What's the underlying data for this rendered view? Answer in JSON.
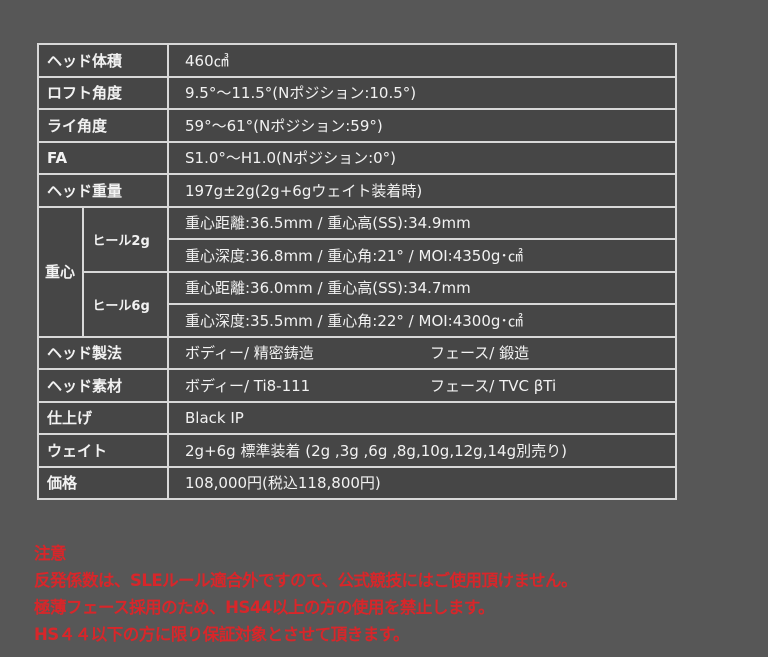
{
  "rows": [
    {
      "label": "ヘッド体積",
      "value": "460㎤"
    },
    {
      "label": "ロフト角度",
      "value": "9.5°〜11.5°(Nポジション:10.5°)"
    },
    {
      "label": "ライ角度",
      "value": "59°〜61°(Nポジション:59°)"
    },
    {
      "label": "FA",
      "value": "S1.0°〜H1.0(Nポジション:0°)"
    },
    {
      "label": "ヘッド重量",
      "value": "197g±2g(2g+6gウェイト装着時)"
    }
  ],
  "cg": {
    "label": "重心",
    "groups": [
      {
        "label": "ヒール2g",
        "lines": [
          "重心距離:36.5mm / 重心高(SS):34.9mm",
          "重心深度:36.8mm / 重心角:21° / MOI:4350g･㎠"
        ]
      },
      {
        "label": "ヒール6g",
        "lines": [
          "重心距離:36.0mm / 重心高(SS):34.7mm",
          "重心深度:35.5mm / 重心角:22° / MOI:4300g･㎠"
        ]
      }
    ]
  },
  "rows2": [
    {
      "label": "ヘッド製法",
      "value": "ボディー/ 精密鋳造",
      "value2": "フェース/ 鍛造"
    },
    {
      "label": "ヘッド素材",
      "value": "ボディー/ Ti8-111",
      "value2": "フェース/ TVC βTi"
    },
    {
      "label": "仕上げ",
      "value": "Black IP"
    },
    {
      "label": "ウェイト",
      "value": "2g+6g 標準装着 (2g ,3g ,6g ,8g,10g,12g,14g別売り)"
    },
    {
      "label": "価格",
      "value": "108,000円(税込118,800円)"
    }
  ],
  "notice": {
    "title": "注意",
    "lines": [
      "反発係数は、SLEルール適合外ですので、公式競技にはご使用頂けません。",
      "極薄フェース採用のため、HS44以上の方の使用を禁止します。",
      "HS４４以下の方に限り保証対象とさせて頂きます。"
    ],
    "color": "#d8262a"
  }
}
